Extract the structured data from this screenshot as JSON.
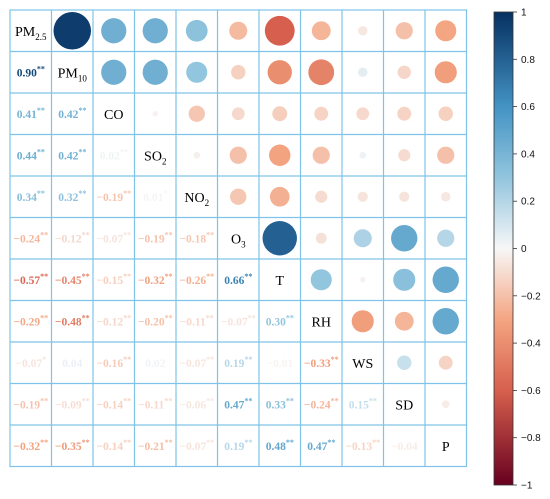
{
  "chart_data": {
    "type": "heatmap",
    "variables": [
      {
        "base": "PM",
        "sub": "2.5"
      },
      {
        "base": "PM",
        "sub": "10"
      },
      {
        "base": "CO",
        "sub": ""
      },
      {
        "base": "SO",
        "sub": "2"
      },
      {
        "base": "NO",
        "sub": "2"
      },
      {
        "base": "O",
        "sub": "3"
      },
      {
        "base": "T",
        "sub": ""
      },
      {
        "base": "RH",
        "sub": ""
      },
      {
        "base": "WS",
        "sub": ""
      },
      {
        "base": "SD",
        "sub": ""
      },
      {
        "base": "P",
        "sub": ""
      }
    ],
    "lower_triangle_labels": [
      [],
      [
        "0.90**"
      ],
      [
        "0.41**",
        "0.42**"
      ],
      [
        "0.44**",
        "0.42**",
        "0.02**"
      ],
      [
        "0.34**",
        "0.32**",
        "−0.19**",
        "0.01*"
      ],
      [
        "−0.24**",
        "−0.12**",
        "−0.07**",
        "−0.19**",
        "−0.18**"
      ],
      [
        "−0.57**",
        "−0.45**",
        "−0.15**",
        "−0.32**",
        "−0.26**",
        "0.66**"
      ],
      [
        "−0.29**",
        "−0.48**",
        "−0.12**",
        "−0.20**",
        "−0.11**",
        "−0.07**",
        "0.30**"
      ],
      [
        "−0.07*",
        "0.04",
        "−0.16**",
        "0.02",
        "−0.07**",
        "0.19**",
        "−0.01",
        "−0.33**"
      ],
      [
        "−0.19**",
        "−0.09**",
        "−0.14**",
        "−0.11**",
        "−0.06**",
        "0.47**",
        "0.33**",
        "−0.24**",
        "0.15**"
      ],
      [
        "−0.32**",
        "−0.35**",
        "−0.14**",
        "−0.21**",
        "−0.07**",
        "0.19**",
        "0.48**",
        "0.47**",
        "−0.13**",
        "−0.04"
      ]
    ],
    "upper_triangle_values": [
      [
        0.0,
        0.95,
        0.43,
        0.43,
        0.32,
        -0.22,
        -0.6,
        -0.24,
        -0.06,
        -0.2,
        -0.3
      ],
      [
        0.0,
        0.0,
        0.43,
        0.43,
        0.3,
        -0.14,
        -0.4,
        -0.45,
        0.06,
        -0.12,
        -0.33
      ],
      [
        0.0,
        0.0,
        0.0,
        -0.02,
        -0.18,
        -0.11,
        -0.15,
        -0.13,
        -0.11,
        -0.13,
        -0.14
      ],
      [
        0.0,
        0.0,
        0.0,
        0.0,
        -0.03,
        -0.2,
        -0.31,
        -0.2,
        0.03,
        -0.1,
        -0.2
      ],
      [
        0.0,
        0.0,
        0.0,
        0.0,
        0.0,
        -0.18,
        -0.26,
        -0.1,
        -0.07,
        -0.07,
        -0.06
      ],
      [
        0.0,
        0.0,
        0.0,
        0.0,
        0.0,
        0.0,
        0.8,
        -0.08,
        0.22,
        0.47,
        0.2
      ],
      [
        0.0,
        0.0,
        0.0,
        0.0,
        0.0,
        0.0,
        0.0,
        0.3,
        -0.02,
        0.33,
        0.47
      ],
      [
        0.0,
        0.0,
        0.0,
        0.0,
        0.0,
        0.0,
        0.0,
        0.0,
        -0.33,
        -0.24,
        0.47
      ],
      [
        0.0,
        0.0,
        0.0,
        0.0,
        0.0,
        0.0,
        0.0,
        0.0,
        0.0,
        0.14,
        -0.13
      ],
      [
        0.0,
        0.0,
        0.0,
        0.0,
        0.0,
        0.0,
        0.0,
        0.0,
        0.0,
        0.0,
        -0.04
      ],
      [
        0.0,
        0.0,
        0.0,
        0.0,
        0.0,
        0.0,
        0.0,
        0.0,
        0.0,
        0.0,
        0.0
      ]
    ],
    "colorbar": {
      "ticks": [
        "1",
        "0.8",
        "0.6",
        "0.4",
        "0.2",
        "0",
        "−0.2",
        "−0.4",
        "−0.6",
        "−0.8",
        "−1"
      ],
      "range": [
        -1,
        1
      ]
    },
    "colors": {
      "pos_strong": "#053061",
      "pos_mid": "#4393c3",
      "pos_light": "#92c5de",
      "neutral": "#f7f7f7",
      "neg_light": "#f4a582",
      "neg_mid": "#d6604d",
      "neg_strong": "#67001f",
      "grid_line": "#7fc4e8"
    },
    "grid": true
  }
}
